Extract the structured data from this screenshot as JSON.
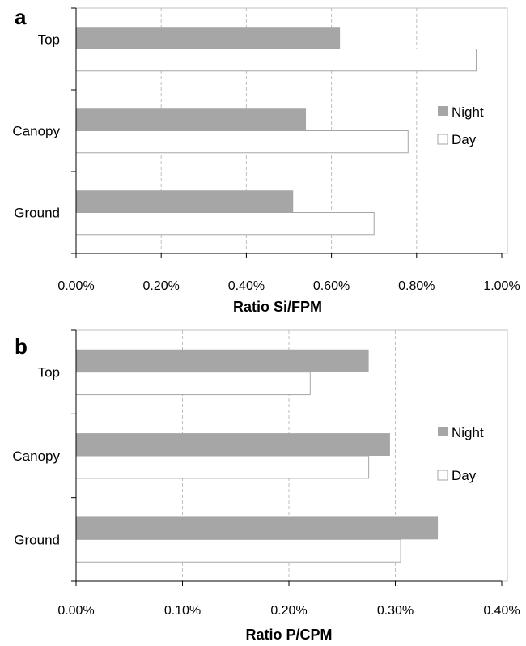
{
  "colors": {
    "night_fill": "#a6a6a6",
    "day_fill": "#ffffff",
    "day_stroke": "#a6a6a6",
    "grid": "#bfbfbf",
    "frame": "#bfbfbf"
  },
  "chart_data": [
    {
      "type": "bar",
      "orientation": "horizontal",
      "panel_letter": "a",
      "categories": [
        "Top",
        "Canopy",
        "Ground"
      ],
      "series": [
        {
          "name": "Night",
          "values": [
            0.62,
            0.54,
            0.51
          ]
        },
        {
          "name": "Day",
          "values": [
            0.94,
            0.78,
            0.7
          ]
        }
      ],
      "xlabel": "Ratio Si/FPM",
      "xlim": [
        0,
        1.0
      ],
      "xticks": [
        "0.00%",
        "0.20%",
        "0.40%",
        "0.60%",
        "0.80%",
        "1.00%"
      ],
      "value_unit": "%",
      "grid": "vertical dashed",
      "legend_position": "right"
    },
    {
      "type": "bar",
      "orientation": "horizontal",
      "panel_letter": "b",
      "categories": [
        "Top",
        "Canopy",
        "Ground"
      ],
      "series": [
        {
          "name": "Night",
          "values": [
            0.275,
            0.295,
            0.34
          ]
        },
        {
          "name": "Day",
          "values": [
            0.22,
            0.275,
            0.305
          ]
        }
      ],
      "xlabel": "Ratio P/CPM",
      "xlim": [
        0,
        0.4
      ],
      "xticks": [
        "0.00%",
        "0.10%",
        "0.20%",
        "0.30%",
        "0.40%"
      ],
      "value_unit": "%",
      "grid": "vertical dashed",
      "legend_position": "right"
    }
  ]
}
